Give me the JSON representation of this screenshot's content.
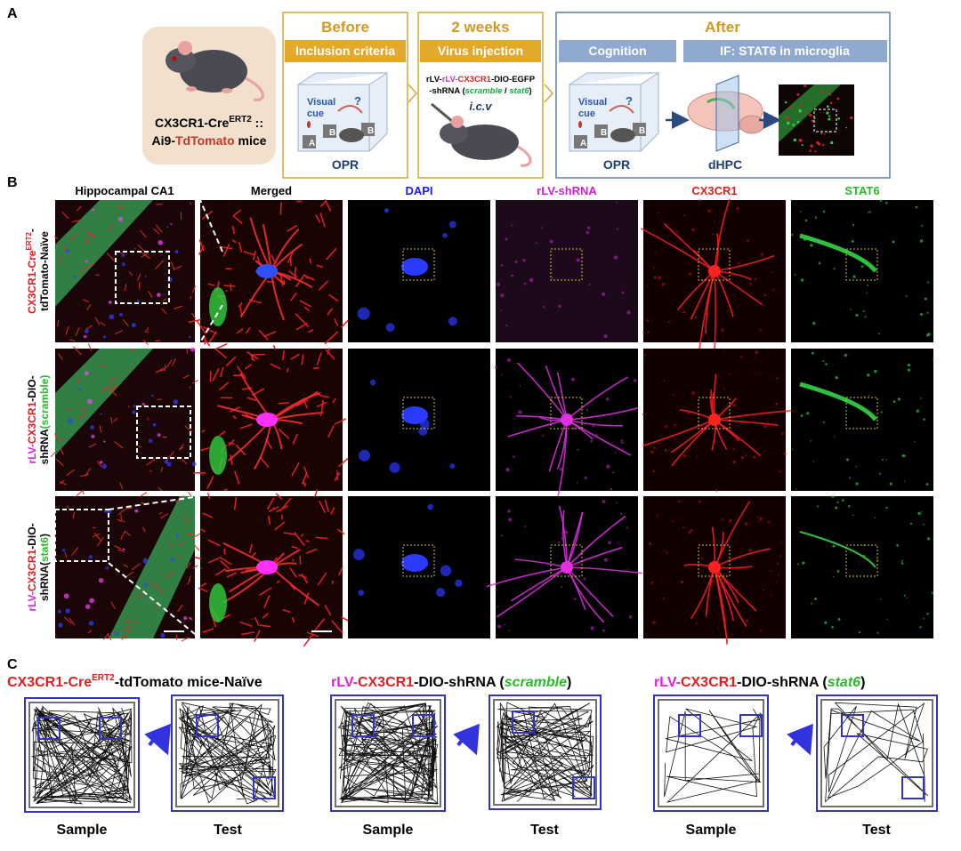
{
  "panel_labels": {
    "a": "A",
    "b": "B",
    "c": "C"
  },
  "panel_a": {
    "mouse": {
      "line1": [
        "CX3CR1-Cre",
        "ERT2",
        " ::"
      ],
      "line2": [
        "Ai9-",
        "TdTomato",
        " mice"
      ]
    },
    "before": {
      "title": "Before",
      "band": "Inclusion criteria",
      "cue": [
        "Visual",
        "cue"
      ],
      "question": "?",
      "boxes": [
        "A",
        "B",
        "B"
      ],
      "test": "OPR"
    },
    "weeks": {
      "title": "2 weeks",
      "band": "Virus injection",
      "construct_line1": [
        "rLV-",
        "rLV-",
        "CX3CR1",
        "-DIO-EGFP"
      ],
      "construct_line2": [
        "-shRNA (",
        "scramble",
        " / ",
        "stat6",
        ")"
      ],
      "route": "i.c.v"
    },
    "after": {
      "title": "After",
      "band_cognition": "Cognition",
      "band_if": "IF: STAT6 in microglia",
      "cue": [
        "Visual",
        "cue"
      ],
      "question": "?",
      "boxes": [
        "A",
        "B",
        "B"
      ],
      "test": "OPR",
      "region": "dHPC"
    }
  },
  "panel_b": {
    "columns": [
      "Hippocampal CA1",
      "Merged",
      "DAPI",
      "rLV-shRNA",
      "CX3CR1",
      "STAT6"
    ],
    "rows": [
      {
        "line1": [
          "CX3CR1-Cre",
          "ERT2",
          "-"
        ],
        "line2": [
          "tdTomato-Naïve"
        ]
      },
      {
        "line1": [
          "rLV-",
          "CX3CR1",
          "-DIO-"
        ],
        "line2": [
          "shRNA",
          "(scramble)"
        ]
      },
      {
        "line1": [
          "rLV-",
          "CX3CR1",
          "-DIO-"
        ],
        "line2": [
          "shRNA(",
          "stat6",
          ")"
        ]
      }
    ]
  },
  "panel_c": {
    "groups": [
      {
        "title": [
          "CX3CR1-Cre",
          "ERT2",
          "-tdTomato mice-Naïve"
        ],
        "sample": "Sample",
        "test": "Test"
      },
      {
        "title": [
          "rLV-",
          "CX3CR1",
          "-DIO-shRNA (",
          "scramble",
          ")"
        ],
        "sample": "Sample",
        "test": "Test"
      },
      {
        "title": [
          "rLV-",
          "CX3CR1",
          "-DIO-shRNA (",
          "stat6",
          ")"
        ],
        "sample": "Sample",
        "test": "Test"
      }
    ]
  }
}
